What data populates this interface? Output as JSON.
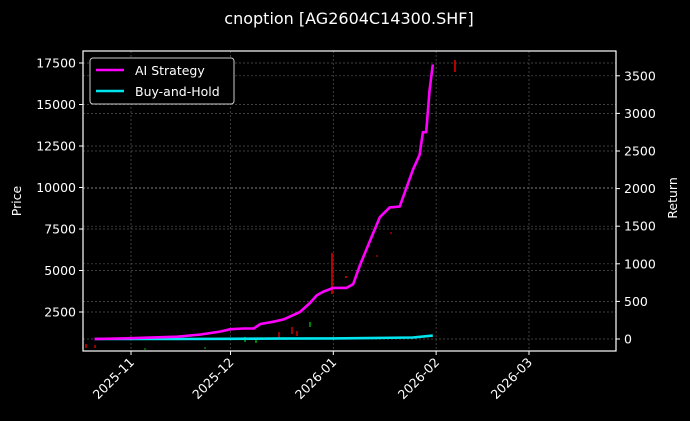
{
  "chart_data": {
    "type": "line",
    "title": "cnoption [AG2604C14300.SHF]",
    "xlabel": "",
    "ylabel": "Price",
    "y2label": "Return",
    "x_ticks": [
      "2025-11",
      "2025-12",
      "2026-01",
      "2026-02",
      "2026-03"
    ],
    "y_ticks": [
      2500,
      5000,
      7500,
      10000,
      12500,
      15000,
      17500
    ],
    "y2_ticks": [
      0,
      500,
      1000,
      1500,
      2000,
      2500,
      3000,
      3500
    ],
    "ylim": [
      0,
      18000
    ],
    "y2lim": [
      -150,
      3800
    ],
    "grid": true,
    "legend_position": "upper left",
    "legend": [
      "AI Strategy",
      "Buy-and-Hold"
    ],
    "colors": {
      "AI Strategy": "#ff00ff",
      "Buy-and-Hold": "#00e5ee",
      "up_candle": "#00c000",
      "down_candle": "#ff0000",
      "background": "#000000"
    },
    "series": [
      {
        "name": "AI Strategy",
        "axis": "right",
        "x": [
          "2025-10-21",
          "2025-11-01",
          "2025-11-15",
          "2025-11-22",
          "2025-11-28",
          "2025-12-01",
          "2025-12-05",
          "2025-12-08",
          "2025-12-10",
          "2025-12-14",
          "2025-12-17",
          "2025-12-19",
          "2025-12-22",
          "2025-12-25",
          "2025-12-27",
          "2025-12-29",
          "2026-01-01",
          "2026-01-05",
          "2026-01-07",
          "2026-01-09",
          "2026-01-12",
          "2026-01-15",
          "2026-01-18",
          "2026-01-21",
          "2026-01-25",
          "2026-01-27",
          "2026-01-28",
          "2026-01-29",
          "2026-01-30",
          "2026-01-31"
        ],
        "values": [
          0,
          10,
          30,
          60,
          100,
          130,
          140,
          140,
          200,
          230,
          260,
          300,
          360,
          480,
          580,
          630,
          680,
          680,
          730,
          980,
          1300,
          1620,
          1750,
          1760,
          2250,
          2450,
          2750,
          2750,
          3300,
          3650
        ]
      },
      {
        "name": "Buy-and-Hold",
        "axis": "right",
        "x": [
          "2025-10-21",
          "2025-11-15",
          "2025-12-01",
          "2025-12-15",
          "2026-01-01",
          "2026-01-15",
          "2026-01-25",
          "2026-01-31"
        ],
        "values": [
          0,
          0,
          3,
          5,
          8,
          15,
          20,
          45
        ]
      }
    ],
    "candles_note": "Faint price candlesticks (red/green) near bottom; notable red spike at ~2025-12-28 reaching ~5900 price"
  }
}
